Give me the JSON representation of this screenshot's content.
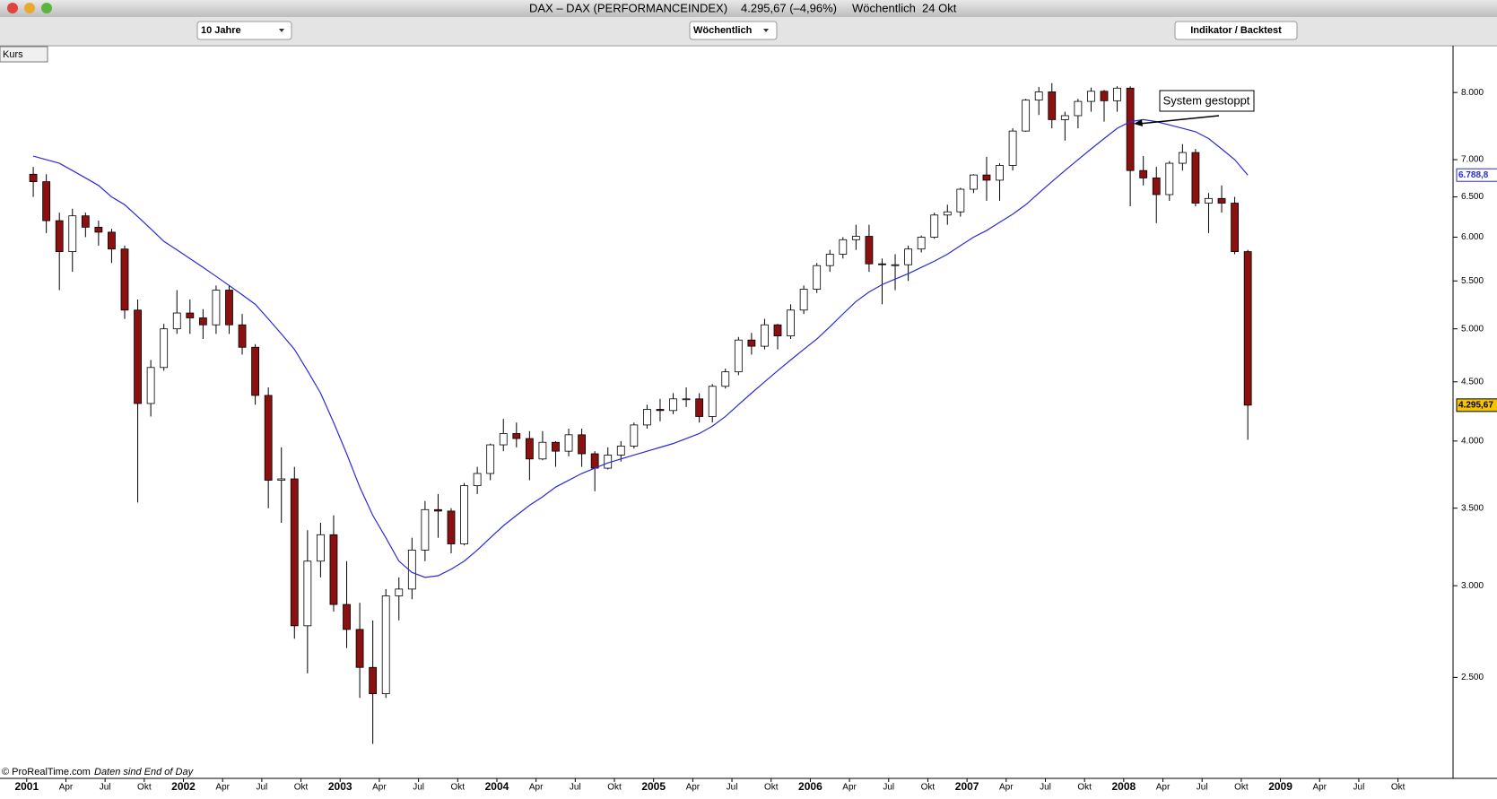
{
  "window": {
    "title": "DAX – DAX (PERFORMANCEINDEX)",
    "price": "4.295,67 (–4,96%)",
    "period": "Wöchentlich  24 Okt"
  },
  "toolbar": {
    "range": "10 Jahre",
    "interval": "Wöchentlich",
    "button": "Indikator / Backtest",
    "tab": "Kurs"
  },
  "footer": {
    "source": "© ProRealTime.com",
    "note": "Daten sind End of Day"
  },
  "chart_data": {
    "type": "candlestick",
    "log_scale": true,
    "annotation": "System gestoppt",
    "ylim": [
      2045,
      8780
    ],
    "yticks": [
      {
        "value": 2500,
        "label": "2.500"
      },
      {
        "value": 3000,
        "label": "3.000"
      },
      {
        "value": 3500,
        "label": "3.500"
      },
      {
        "value": 4000,
        "label": "4.000"
      },
      {
        "value": 4500,
        "label": "4.500"
      },
      {
        "value": 5000,
        "label": "5.000"
      },
      {
        "value": 5500,
        "label": "5.500"
      },
      {
        "value": 6000,
        "label": "6.000"
      },
      {
        "value": 6500,
        "label": "6.500"
      },
      {
        "value": 7000,
        "label": "7.000"
      },
      {
        "value": 8000,
        "label": "8.000"
      }
    ],
    "categories": [
      "2001",
      null,
      null,
      "Apr",
      null,
      null,
      "Jul",
      null,
      null,
      "Okt",
      null,
      null,
      "2002",
      null,
      null,
      "Apr",
      null,
      null,
      "Jul",
      null,
      null,
      "Okt",
      null,
      null,
      "2003",
      null,
      null,
      "Apr",
      null,
      null,
      "Jul",
      null,
      null,
      "Okt",
      null,
      null,
      "2004",
      null,
      null,
      "Apr",
      null,
      null,
      "Jul",
      null,
      null,
      "Okt",
      null,
      null,
      "2005",
      null,
      null,
      "Apr",
      null,
      null,
      "Jul",
      null,
      null,
      "Okt",
      null,
      null,
      "2006",
      null,
      null,
      "Apr",
      null,
      null,
      "Jul",
      null,
      null,
      "Okt",
      null,
      null,
      "2007",
      null,
      null,
      "Apr",
      null,
      null,
      "Jul",
      null,
      null,
      "Okt",
      null,
      null,
      "2008",
      null,
      null,
      "Apr",
      null,
      null,
      "Jul",
      null,
      null,
      "Okt",
      null,
      null,
      "2009",
      null,
      null,
      "Apr",
      null,
      null,
      "Jul",
      null,
      null,
      "Okt",
      null,
      null
    ],
    "ohlc": {
      "up_color": "#ffffff",
      "down_color": "#8b1010",
      "open": [
        6800,
        6700,
        6200,
        5830,
        6260,
        6120,
        6060,
        5860,
        5190,
        4310,
        4630,
        5000,
        5160,
        5110,
        5040,
        5400,
        5040,
        4820,
        4380,
        3700,
        3710,
        2770,
        3150,
        3320,
        2890,
        2750,
        2550,
        2420,
        2940,
        2980,
        3220,
        3490,
        3480,
        3260,
        3660,
        3750,
        3970,
        4060,
        4020,
        3860,
        3990,
        3920,
        4050,
        3900,
        3790,
        3890,
        3960,
        4130,
        4260,
        4250,
        4350,
        4350,
        4200,
        4460,
        4590,
        4890,
        4830,
        5040,
        4930,
        5190,
        5410,
        5670,
        5800,
        5970,
        6010,
        5690,
        5680,
        5680,
        5860,
        6000,
        6270,
        6310,
        6600,
        6790,
        6720,
        6920,
        7410,
        7880,
        8010,
        7580,
        7640,
        7860,
        8020,
        7870,
        8070,
        6850,
        6750,
        6530,
        6950,
        7100,
        6420,
        6480,
        6420,
        5830,
        null,
        null,
        null,
        null,
        null,
        null,
        null,
        null,
        null,
        null,
        null,
        null,
        null,
        null
      ],
      "high": [
        6900,
        6800,
        6300,
        6350,
        6300,
        6200,
        6100,
        5900,
        5300,
        4700,
        5050,
        5400,
        5300,
        5200,
        5450,
        5450,
        5150,
        4850,
        4450,
        3950,
        3800,
        3350,
        3400,
        3450,
        3150,
        2900,
        2800,
        2980,
        3050,
        3300,
        3550,
        3600,
        3500,
        3680,
        3800,
        3980,
        4180,
        4150,
        4080,
        4080,
        4000,
        4100,
        4100,
        3920,
        3950,
        4000,
        4150,
        4300,
        4350,
        4400,
        4450,
        4400,
        4480,
        4620,
        4920,
        4960,
        5100,
        5050,
        5250,
        5450,
        5700,
        5850,
        6000,
        6150,
        6150,
        5750,
        5800,
        5900,
        6020,
        6300,
        6400,
        6620,
        6800,
        7040,
        6950,
        7450,
        7900,
        8090,
        8150,
        7700,
        7900,
        8080,
        8040,
        8100,
        8100,
        7050,
        6900,
        6980,
        7220,
        7150,
        6550,
        6650,
        6500,
        5850,
        null,
        null,
        null,
        null,
        null,
        null,
        null,
        null,
        null,
        null,
        null,
        null,
        null,
        null
      ],
      "low": [
        6500,
        6050,
        5400,
        5600,
        6000,
        5900,
        5700,
        5100,
        3540,
        4200,
        4600,
        4950,
        4950,
        4900,
        4950,
        4950,
        4750,
        4300,
        3500,
        3400,
        2700,
        2520,
        3050,
        2850,
        2650,
        2400,
        2190,
        2400,
        2800,
        2920,
        3150,
        3300,
        3200,
        3250,
        3600,
        3700,
        3920,
        3950,
        3700,
        3850,
        3800,
        3880,
        3800,
        3620,
        3780,
        3840,
        3940,
        4100,
        4160,
        4220,
        4280,
        4150,
        4150,
        4440,
        4560,
        4750,
        4800,
        4800,
        4900,
        5150,
        5370,
        5600,
        5750,
        5850,
        5600,
        5250,
        5400,
        5500,
        5820,
        5980,
        6150,
        6250,
        6550,
        6450,
        6450,
        6850,
        7400,
        7650,
        7450,
        7270,
        7450,
        7700,
        7550,
        7700,
        6380,
        6650,
        6170,
        6450,
        6850,
        6380,
        6050,
        6300,
        5800,
        4010,
        null,
        null,
        null,
        null,
        null,
        null,
        null,
        null,
        null,
        null,
        null,
        null,
        null,
        null
      ],
      "close": [
        6700,
        6200,
        5830,
        6260,
        6120,
        6060,
        5860,
        5190,
        4310,
        4630,
        5000,
        5160,
        5110,
        5040,
        5400,
        5040,
        4820,
        4380,
        3700,
        3710,
        2770,
        3150,
        3320,
        2890,
        2750,
        2550,
        2420,
        2940,
        2980,
        3220,
        3490,
        3480,
        3260,
        3660,
        3750,
        3970,
        4060,
        4020,
        3860,
        3990,
        3920,
        4050,
        3900,
        3790,
        3890,
        3960,
        4130,
        4260,
        4250,
        4350,
        4350,
        4200,
        4460,
        4590,
        4890,
        4830,
        5040,
        4930,
        5190,
        5410,
        5670,
        5800,
        5970,
        6010,
        5690,
        5680,
        5680,
        5860,
        6000,
        6270,
        6310,
        6600,
        6790,
        6720,
        6920,
        7410,
        7880,
        8010,
        7580,
        7640,
        7860,
        8020,
        7870,
        8070,
        6850,
        6750,
        6530,
        6950,
        7100,
        6420,
        6480,
        6420,
        5830,
        4295.67,
        null,
        null,
        null,
        null,
        null,
        null,
        null,
        null,
        null,
        null,
        null,
        null,
        null,
        null
      ],
      "last_label": "4.295,67"
    },
    "series": [
      {
        "color": "#2a2ad8",
        "last_label": "6.788,8",
        "values": [
          7050,
          7000,
          6950,
          6850,
          6750,
          6650,
          6500,
          6400,
          6250,
          6100,
          5950,
          5850,
          5750,
          5650,
          5550,
          5450,
          5350,
          5250,
          5100,
          4950,
          4800,
          4600,
          4400,
          4150,
          3900,
          3650,
          3450,
          3300,
          3150,
          3080,
          3050,
          3060,
          3100,
          3150,
          3220,
          3300,
          3380,
          3450,
          3520,
          3580,
          3650,
          3700,
          3750,
          3790,
          3830,
          3860,
          3890,
          3920,
          3950,
          3980,
          4020,
          4060,
          4120,
          4200,
          4300,
          4400,
          4500,
          4600,
          4700,
          4800,
          4900,
          5020,
          5150,
          5280,
          5380,
          5460,
          5520,
          5580,
          5650,
          5720,
          5800,
          5900,
          6000,
          6080,
          6180,
          6280,
          6400,
          6550,
          6700,
          6850,
          7000,
          7150,
          7300,
          7450,
          7550,
          7580,
          7550,
          7500,
          7450,
          7400,
          7300,
          7150,
          7000,
          6788.8,
          null,
          null,
          null,
          null,
          null,
          null,
          null,
          null,
          null,
          null,
          null,
          null,
          null,
          null
        ]
      }
    ]
  }
}
